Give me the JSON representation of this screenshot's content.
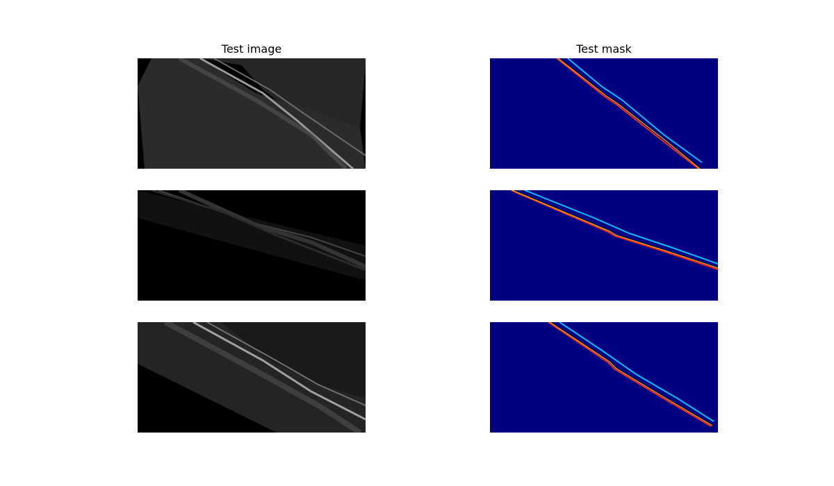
{
  "titles": {
    "image_column": "Test image",
    "mask_column": "Test mask"
  },
  "colors": {
    "background": "#ffffff",
    "image_black": "#000000",
    "mask_background": "#000080",
    "mask_line_cyan": "#00bfff",
    "mask_line_yellow": "#ffd800",
    "mask_line_red": "#ff2a00"
  },
  "panels": [
    {
      "id": "image-1",
      "kind": "oct-scan"
    },
    {
      "id": "image-2",
      "kind": "oct-scan"
    },
    {
      "id": "image-3",
      "kind": "oct-scan"
    },
    {
      "id": "mask-1",
      "kind": "segmentation-mask"
    },
    {
      "id": "mask-2",
      "kind": "segmentation-mask"
    },
    {
      "id": "mask-3",
      "kind": "segmentation-mask"
    }
  ]
}
